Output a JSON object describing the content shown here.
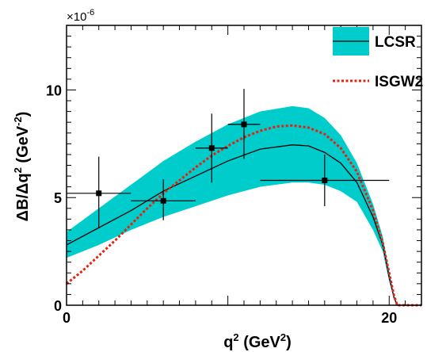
{
  "chart_data": {
    "type": "line",
    "xlabel_base": "q",
    "xlabel_sup": "2",
    "xlabel_unit_open": " (GeV",
    "xlabel_unit_sup": "2",
    "xlabel_unit_close": ")",
    "ylabel_main": "ΔB/Δq",
    "ylabel_sup1": "2",
    "ylabel_unit_open": " (GeV",
    "ylabel_unit_sup": "-2",
    "ylabel_unit_close": ")",
    "y_exponent_prefix": "×10",
    "y_exponent_power": "-6",
    "xlim": [
      0,
      22
    ],
    "ylim": [
      0,
      13
    ],
    "x_ticks": [
      {
        "value": 0,
        "label": "0"
      },
      {
        "value": 20,
        "label": "20"
      }
    ],
    "y_ticks": [
      {
        "value": 0,
        "label": "0"
      },
      {
        "value": 5,
        "label": "5"
      },
      {
        "value": 10,
        "label": "10"
      }
    ],
    "legend": {
      "placement": "top-right",
      "entries": [
        {
          "label": "LCSR",
          "kind": "band-with-line"
        },
        {
          "label": "ISGW2",
          "kind": "dotted-line"
        }
      ]
    },
    "series": [
      {
        "name": "LCSR",
        "kind": "central-line",
        "color": "#000000",
        "x": [
          0,
          2,
          4,
          6,
          8,
          10,
          12,
          14,
          15,
          16,
          17,
          18,
          19,
          19.6,
          20,
          20.3,
          20.5,
          22
        ],
        "y": [
          2.8,
          3.6,
          4.4,
          5.3,
          6.0,
          6.7,
          7.25,
          7.45,
          7.4,
          7.1,
          6.6,
          5.7,
          4.1,
          2.8,
          1.3,
          0.35,
          0,
          0
        ]
      },
      {
        "name": "LCSR",
        "kind": "band",
        "color": "#00cccc",
        "x": [
          0,
          2,
          4,
          6,
          8,
          10,
          12,
          14,
          15,
          16,
          17,
          18,
          19,
          19.6,
          20,
          20.3,
          20.5
        ],
        "upper": [
          3.4,
          4.5,
          5.6,
          6.7,
          7.6,
          8.4,
          9.0,
          9.25,
          9.15,
          8.7,
          7.9,
          6.6,
          4.7,
          3.2,
          1.6,
          0.45,
          0
        ],
        "lower": [
          2.2,
          2.8,
          3.5,
          4.1,
          4.6,
          5.1,
          5.5,
          5.7,
          5.7,
          5.6,
          5.3,
          4.8,
          3.5,
          2.5,
          1.1,
          0.3,
          0
        ]
      },
      {
        "name": "ISGW2",
        "kind": "dotted-line",
        "color": "#e8200e",
        "x": [
          0,
          1,
          2,
          3,
          4,
          5,
          6,
          7,
          8,
          9,
          10,
          11,
          12,
          13,
          14,
          15,
          16,
          17,
          18,
          19,
          19.6,
          20,
          20.3,
          20.5,
          22
        ],
        "y": [
          1.0,
          1.6,
          2.3,
          3.0,
          3.75,
          4.5,
          5.2,
          5.8,
          6.4,
          6.95,
          7.4,
          7.8,
          8.1,
          8.3,
          8.35,
          8.25,
          7.95,
          7.3,
          6.2,
          4.4,
          2.9,
          1.5,
          0.45,
          0,
          0
        ]
      }
    ],
    "data_points": [
      {
        "x": 2,
        "y": 5.2,
        "xerr": 2,
        "yerr_low": 1.6,
        "yerr_high": 1.7
      },
      {
        "x": 6,
        "y": 4.85,
        "xerr": 2,
        "yerr_low": 0.9,
        "yerr_high": 1.0
      },
      {
        "x": 9,
        "y": 7.3,
        "xerr": 1,
        "yerr_low": 1.6,
        "yerr_high": 1.6
      },
      {
        "x": 11,
        "y": 8.4,
        "xerr": 1,
        "yerr_low": 1.6,
        "yerr_high": 1.65
      },
      {
        "x": 16,
        "y": 5.8,
        "xerr": 4,
        "yerr_low": 1.2,
        "yerr_high": 1.2
      }
    ]
  },
  "colors": {
    "band": "#00cccc",
    "central_line": "#000000",
    "isgw2": "#e8200e",
    "data": "#000000"
  }
}
